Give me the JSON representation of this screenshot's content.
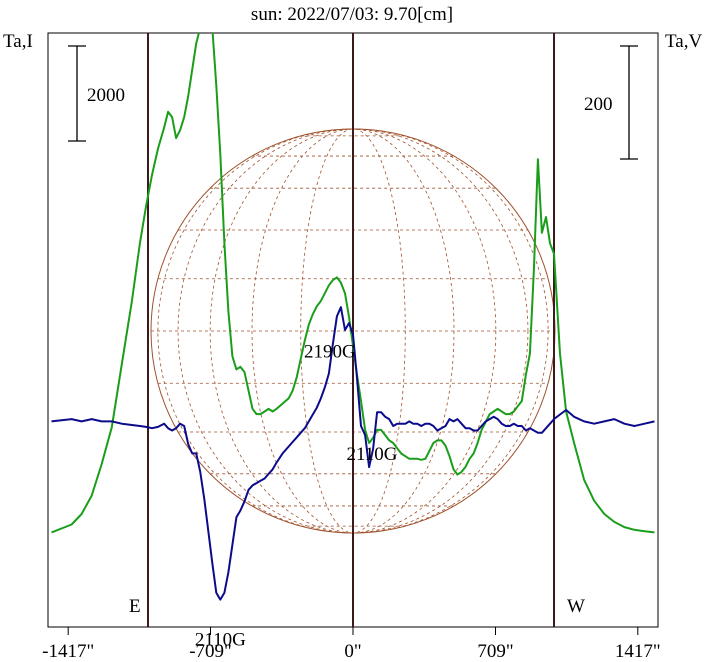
{
  "title": "sun: 2022/07/03: 9.70[cm]",
  "left_axis_label": "Ta,I",
  "right_axis_label": "Ta,V",
  "scale_left_label": "2000",
  "scale_right_label": "200",
  "east_label": "E",
  "west_label": "W",
  "colors": {
    "intensity": "#1a9e1a",
    "polarization": "#0b0b8c",
    "disk": "#a0522d",
    "limb_lines": "#3a1a1a",
    "frame": "#000000",
    "title": "#1f2f7a"
  },
  "chart_data": {
    "type": "line",
    "title": "sun: 2022/07/03: 9.70[cm]",
    "xlabel": "",
    "ylabel_left": "Ta,I",
    "ylabel_right": "Ta,V",
    "xlim": [
      -1500,
      1500
    ],
    "x_ticks": [
      -1417,
      -709,
      0,
      709,
      1417
    ],
    "x_tick_labels": [
      "-1417\"",
      "-709\"",
      "0\"",
      "709\"",
      "1417\""
    ],
    "limb_markers": [
      -1000,
      0,
      1000
    ],
    "annotations": [
      {
        "text": "2190G",
        "x": -115,
        "series": "V"
      },
      {
        "text": "2110G",
        "x": 45,
        "series": "V"
      },
      {
        "text": "2110G",
        "x": -660,
        "series": "V"
      }
    ],
    "series": [
      {
        "name": "I",
        "axis": "left",
        "ylim": [
          -1800,
          9500
        ],
        "x": [
          -1500,
          -1400,
          -1350,
          -1300,
          -1250,
          -1200,
          -1150,
          -1100,
          -1060,
          -1030,
          -1000,
          -970,
          -940,
          -920,
          -900,
          -880,
          -860,
          -840,
          -820,
          -800,
          -780,
          -760,
          -740,
          -720,
          -700,
          -680,
          -660,
          -640,
          -620,
          -600,
          -580,
          -560,
          -540,
          -520,
          -500,
          -480,
          -460,
          -440,
          -420,
          -400,
          -380,
          -350,
          -320,
          -300,
          -280,
          -260,
          -240,
          -220,
          -200,
          -180,
          -160,
          -140,
          -120,
          -100,
          -80,
          -60,
          -40,
          -20,
          0,
          20,
          40,
          60,
          80,
          100,
          120,
          140,
          160,
          180,
          200,
          220,
          240,
          260,
          280,
          300,
          320,
          340,
          360,
          380,
          400,
          420,
          440,
          460,
          480,
          500,
          520,
          540,
          560,
          580,
          600,
          620,
          640,
          660,
          680,
          700,
          720,
          740,
          760,
          780,
          800,
          820,
          840,
          860,
          880,
          900,
          920,
          940,
          960,
          980,
          1000,
          1030,
          1060,
          1100,
          1150,
          1200,
          1250,
          1300,
          1350,
          1400,
          1450,
          1500
        ],
        "values": [
          0,
          150,
          350,
          700,
          1300,
          2000,
          3200,
          4400,
          5500,
          6200,
          6800,
          7300,
          7700,
          8000,
          7900,
          7500,
          7650,
          7900,
          8300,
          8800,
          9300,
          9600,
          10200,
          10200,
          9600,
          8500,
          7200,
          5500,
          4200,
          3350,
          3100,
          3150,
          3050,
          2700,
          2350,
          2250,
          2250,
          2300,
          2350,
          2300,
          2350,
          2450,
          2550,
          2700,
          2950,
          3300,
          3650,
          3950,
          4150,
          4300,
          4400,
          4550,
          4700,
          4800,
          4850,
          4750,
          4550,
          4100,
          3550,
          3000,
          2500,
          1950,
          1700,
          1800,
          1950,
          1950,
          1850,
          1750,
          1700,
          1600,
          1500,
          1450,
          1400,
          1400,
          1400,
          1380,
          1400,
          1550,
          1700,
          1750,
          1750,
          1650,
          1450,
          1200,
          1100,
          1150,
          1250,
          1400,
          1500,
          1700,
          1950,
          2100,
          2250,
          2300,
          2350,
          2300,
          2250,
          2250,
          2300,
          2400,
          2500,
          3000,
          3400,
          5000,
          7100,
          5700,
          6000,
          5500,
          5300,
          3400,
          2300,
          1700,
          1000,
          600,
          350,
          200,
          100,
          50,
          20,
          0
        ]
      },
      {
        "name": "V",
        "axis": "right",
        "ylim": [
          -450,
          850
        ],
        "x": [
          -1500,
          -1400,
          -1350,
          -1300,
          -1250,
          -1200,
          -1150,
          -1100,
          -1060,
          -1030,
          -1000,
          -970,
          -940,
          -920,
          -900,
          -880,
          -860,
          -840,
          -820,
          -800,
          -780,
          -760,
          -740,
          -720,
          -700,
          -680,
          -660,
          -640,
          -620,
          -600,
          -580,
          -560,
          -540,
          -520,
          -500,
          -480,
          -460,
          -440,
          -420,
          -400,
          -380,
          -350,
          -320,
          -300,
          -280,
          -260,
          -240,
          -220,
          -200,
          -180,
          -160,
          -140,
          -120,
          -100,
          -80,
          -60,
          -40,
          -20,
          0,
          20,
          40,
          60,
          80,
          100,
          120,
          140,
          160,
          180,
          200,
          220,
          240,
          260,
          280,
          300,
          320,
          340,
          360,
          380,
          400,
          420,
          440,
          460,
          480,
          500,
          520,
          540,
          560,
          580,
          600,
          620,
          640,
          660,
          680,
          700,
          720,
          740,
          760,
          780,
          800,
          820,
          840,
          860,
          880,
          900,
          920,
          940,
          960,
          980,
          1000,
          1030,
          1060,
          1100,
          1150,
          1200,
          1250,
          1300,
          1350,
          1400,
          1450,
          1500
        ],
        "values": [
          0,
          5,
          0,
          5,
          0,
          0,
          -5,
          -8,
          -10,
          -12,
          -15,
          -12,
          -5,
          -15,
          -20,
          -15,
          -5,
          -10,
          -50,
          -70,
          -70,
          -110,
          -170,
          -240,
          -310,
          -375,
          -390,
          -375,
          -330,
          -270,
          -210,
          -195,
          -175,
          -150,
          -140,
          -135,
          -130,
          -125,
          -115,
          -105,
          -90,
          -70,
          -55,
          -45,
          -35,
          -25,
          -15,
          0,
          15,
          30,
          50,
          75,
          105,
          170,
          230,
          250,
          200,
          215,
          190,
          95,
          -10,
          -30,
          -100,
          -60,
          20,
          20,
          10,
          5,
          -10,
          -5,
          -5,
          -5,
          0,
          -5,
          -5,
          -10,
          -5,
          -5,
          -10,
          -20,
          -15,
          -10,
          5,
          0,
          5,
          -5,
          -15,
          -15,
          -20,
          -20,
          -10,
          0,
          5,
          10,
          5,
          -5,
          -10,
          -10,
          -5,
          -10,
          -10,
          -20,
          -15,
          -20,
          -25,
          -25,
          -15,
          -5,
          5,
          15,
          25,
          10,
          0,
          -5,
          0,
          5,
          -5,
          -10,
          -5,
          0
        ]
      }
    ]
  }
}
